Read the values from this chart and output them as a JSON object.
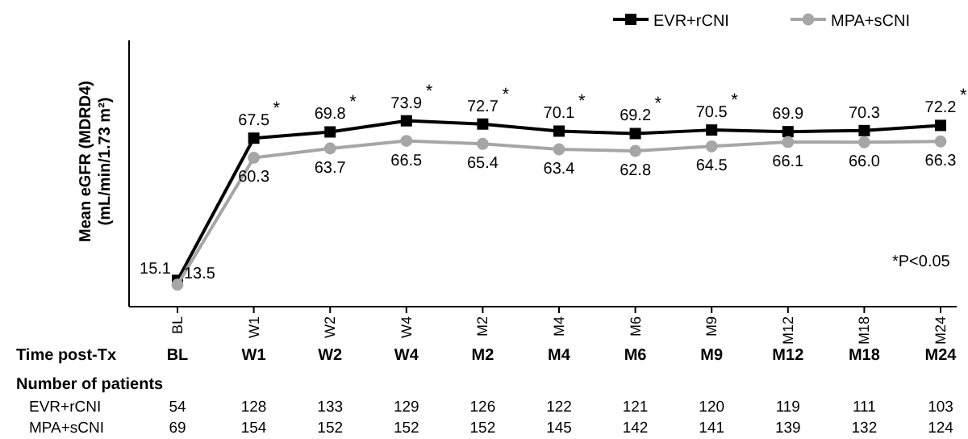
{
  "chart_data": {
    "type": "line",
    "ylabel": "Mean eGFR (MDRD4)\n(mL/min/1.73 m²)",
    "categories": [
      "BL",
      "W1",
      "W2",
      "W4",
      "M2",
      "M4",
      "M6",
      "M9",
      "M12",
      "M18",
      "M24"
    ],
    "series": [
      {
        "name": "EVR+rCNI",
        "color": "#000000",
        "marker": "square",
        "values": [
          15.1,
          67.5,
          69.8,
          73.9,
          72.7,
          70.1,
          69.2,
          70.5,
          69.9,
          70.3,
          72.2
        ],
        "value_labels": [
          "15.1",
          "67.5",
          "69.8",
          "73.9",
          "72.7",
          "70.1",
          "69.2",
          "70.5",
          "69.9",
          "70.3",
          "72.2"
        ]
      },
      {
        "name": "MPA+sCNI",
        "color": "#a6a6a6",
        "marker": "circle",
        "values": [
          13.5,
          60.3,
          63.7,
          66.5,
          65.4,
          63.4,
          62.8,
          64.5,
          66.1,
          66.0,
          66.3
        ],
        "value_labels": [
          "13.5",
          "60.3",
          "63.7",
          "66.5",
          "65.4",
          "63.4",
          "62.8",
          "64.5",
          "66.1",
          "66.0",
          "66.3"
        ]
      }
    ],
    "legend": "top right",
    "line_style": "solid",
    "annotations": [
      {
        "text": "*",
        "x": "W1",
        "y": 67.5
      },
      {
        "text": "*",
        "x": "W2",
        "y": 69.8
      },
      {
        "text": "*",
        "x": "W4",
        "y": 73.9
      },
      {
        "text": "*",
        "x": "M2",
        "y": 72.7
      },
      {
        "text": "*",
        "x": "M4",
        "y": 70.1
      },
      {
        "text": "*",
        "x": "M6",
        "y": 69.2
      },
      {
        "text": "*",
        "x": "M9",
        "y": 70.5
      },
      {
        "text": "*",
        "x": "M24",
        "y": 72.2
      },
      "*P<0.05",
      "Time post-Tx",
      "Number of patients",
      "EVR+rCNI",
      "54 128 133 129 126 122 121 120 119 111 103",
      "MPA+sCNI",
      "69 154 152 152 152 145 142 141 139 132 124"
    ]
  }
}
